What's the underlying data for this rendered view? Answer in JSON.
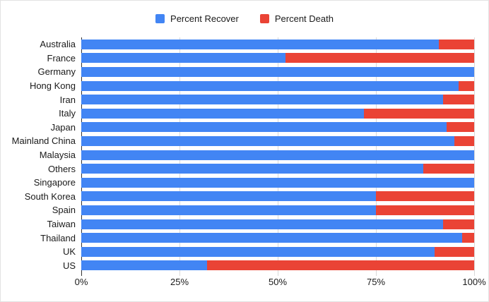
{
  "chart_data": {
    "type": "bar",
    "orientation": "horizontal",
    "stacked": true,
    "stacked_total": 100,
    "title": "",
    "categories": [
      "Australia",
      "France",
      "Germany",
      "Hong Kong",
      "Iran",
      "Italy",
      "Japan",
      "Mainland China",
      "Malaysia",
      "Others",
      "Singapore",
      "South Korea",
      "Spain",
      "Taiwan",
      "Thailand",
      "UK",
      "US"
    ],
    "series": [
      {
        "name": "Percent Recover",
        "color": "#4285F4",
        "values": [
          91,
          52,
          100,
          96,
          92,
          72,
          93,
          95,
          100,
          87,
          100,
          75,
          75,
          92,
          97,
          90,
          32
        ]
      },
      {
        "name": "Percent Death",
        "color": "#EA4335",
        "values": [
          9,
          48,
          0,
          4,
          8,
          28,
          7,
          5,
          0,
          13,
          0,
          25,
          25,
          8,
          3,
          10,
          68
        ]
      }
    ],
    "x_axis": {
      "tick_labels": [
        "0%",
        "25%",
        "50%",
        "75%",
        "100%"
      ],
      "tick_values": [
        0,
        25,
        50,
        75,
        100
      ],
      "range": [
        0,
        100
      ]
    },
    "grid": true,
    "legend_position": "top",
    "colors": {
      "background": "#ffffff",
      "gridline": "#d9d9d9",
      "baseline": "#333333",
      "label_text": "#1a1a1a"
    }
  }
}
